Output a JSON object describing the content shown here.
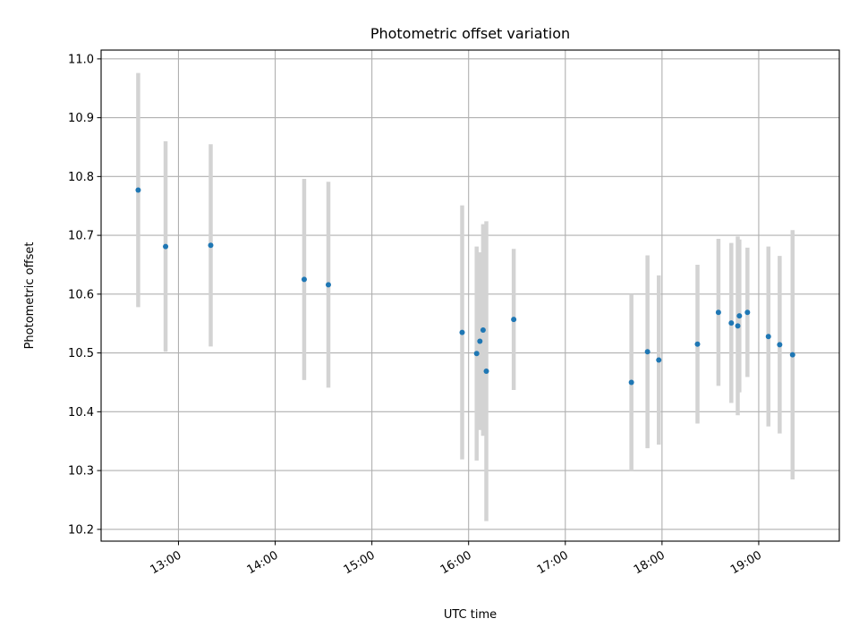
{
  "chart_data": {
    "type": "scatter",
    "title": "Photometric offset variation",
    "xlabel": "UTC time",
    "ylabel": "Photometric offset",
    "xlim": [
      "12:12",
      "19:50"
    ],
    "ylim": [
      10.18,
      11.015
    ],
    "xticks": [
      "13:00",
      "14:00",
      "15:00",
      "16:00",
      "17:00",
      "18:00",
      "19:00"
    ],
    "yticks": [
      10.2,
      10.3,
      10.4,
      10.5,
      10.6,
      10.7,
      10.8,
      10.9,
      11.0
    ],
    "yticklabels": [
      "10.2",
      "10.3",
      "10.4",
      "10.5",
      "10.6",
      "10.7",
      "10.8",
      "10.9",
      "11.0"
    ],
    "grid": true,
    "marker_color": "#1f77b4",
    "errorbar_color": "#d3d3d3",
    "points": [
      {
        "time": "12:35",
        "y": 10.777,
        "yerr": 0.199
      },
      {
        "time": "12:52",
        "y": 10.681,
        "yerr": 0.179
      },
      {
        "time": "13:20",
        "y": 10.683,
        "yerr": 0.172
      },
      {
        "time": "14:18",
        "y": 10.625,
        "yerr": 0.171
      },
      {
        "time": "14:33",
        "y": 10.616,
        "yerr": 0.175
      },
      {
        "time": "15:56",
        "y": 10.535,
        "yerr": 0.216
      },
      {
        "time": "16:05",
        "y": 10.499,
        "yerr": 0.182
      },
      {
        "time": "16:07",
        "y": 10.52,
        "yerr": 0.151
      },
      {
        "time": "16:09",
        "y": 10.539,
        "yerr": 0.18
      },
      {
        "time": "16:11",
        "y": 10.469,
        "yerr": 0.255
      },
      {
        "time": "16:28",
        "y": 10.557,
        "yerr": 0.12
      },
      {
        "time": "17:41",
        "y": 10.45,
        "yerr": 0.15
      },
      {
        "time": "17:51",
        "y": 10.502,
        "yerr": 0.164
      },
      {
        "time": "17:58",
        "y": 10.488,
        "yerr": 0.144
      },
      {
        "time": "18:22",
        "y": 10.515,
        "yerr": 0.135
      },
      {
        "time": "18:35",
        "y": 10.569,
        "yerr": 0.125
      },
      {
        "time": "18:43",
        "y": 10.551,
        "yerr": 0.136
      },
      {
        "time": "18:47",
        "y": 10.546,
        "yerr": 0.152
      },
      {
        "time": "18:48",
        "y": 10.563,
        "yerr": 0.13
      },
      {
        "time": "18:53",
        "y": 10.569,
        "yerr": 0.11
      },
      {
        "time": "19:06",
        "y": 10.528,
        "yerr": 0.153
      },
      {
        "time": "19:13",
        "y": 10.514,
        "yerr": 0.151
      },
      {
        "time": "19:21",
        "y": 10.497,
        "yerr": 0.212
      }
    ]
  }
}
